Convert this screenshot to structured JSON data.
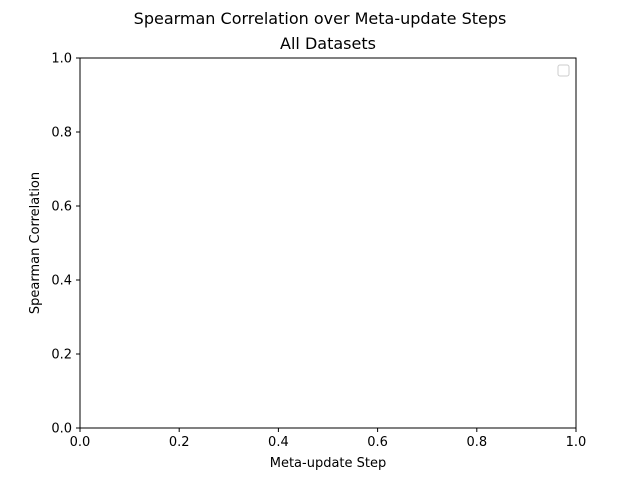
{
  "chart_data": {
    "type": "line",
    "title": "Spearman Correlation over Meta-update Steps",
    "subtitle": "All Datasets",
    "xlabel": "Meta-update Step",
    "ylabel": "Spearman Correlation",
    "xlim": [
      0,
      1
    ],
    "ylim": [
      0,
      1
    ],
    "xticks": [
      "0.0",
      "0.2",
      "0.4",
      "0.6",
      "0.8",
      "1.0"
    ],
    "yticks": [
      "0.0",
      "0.2",
      "0.4",
      "0.6",
      "0.8",
      "1.0"
    ],
    "series": [],
    "grid": false,
    "legend": {
      "placement": "top-right",
      "entries": []
    }
  }
}
